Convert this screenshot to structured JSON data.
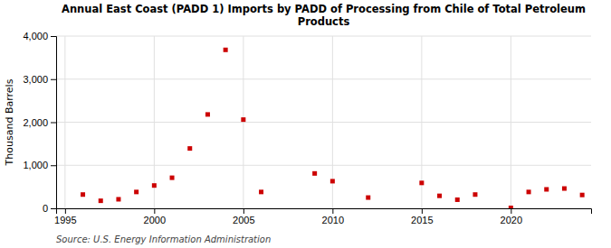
{
  "chart_data": {
    "type": "scatter",
    "title": "Annual East Coast (PADD 1) Imports by PADD of Processing from Chile of Total Petroleum\nProducts",
    "y_label": "Thousand Barrels",
    "annotations": [
      "Source: U.S. Energy Information Administration"
    ],
    "x": [
      1996,
      1997,
      1998,
      1999,
      2000,
      2001,
      2002,
      2003,
      2004,
      2005,
      2006,
      2009,
      2010,
      2012,
      2015,
      2016,
      2017,
      2018,
      2020,
      2021,
      2022,
      2023,
      2024
    ],
    "values": [
      320,
      175,
      210,
      380,
      530,
      710,
      1390,
      2180,
      3680,
      2060,
      380,
      810,
      630,
      250,
      590,
      290,
      200,
      320,
      10,
      380,
      440,
      460,
      310
    ],
    "color": "#cc0000",
    "marker": "square",
    "xlim": [
      1994.5,
      2024.5
    ],
    "xticks": [
      1995,
      2000,
      2005,
      2010,
      2015,
      2020
    ],
    "ylim": [
      0,
      4000
    ],
    "yticks": [
      0,
      {
        "value": 1000,
        "label": "1,000"
      },
      {
        "value": 2000,
        "label": "2,000"
      },
      {
        "value": 3000,
        "label": "3,000"
      },
      {
        "value": 4000,
        "label": "4,000"
      }
    ],
    "grid": true
  }
}
